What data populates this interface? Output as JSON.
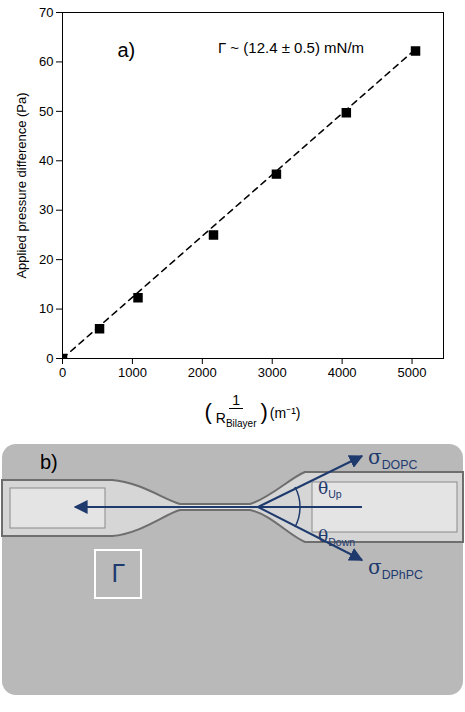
{
  "chart_data": {
    "type": "scatter",
    "panel_label": "a)",
    "annotation": "Γ ~ (12.4 ± 0.5) mN/m",
    "y_label": "Applied pressure difference (Pa)",
    "x_label": {
      "numerator": "1",
      "denominator": "R",
      "denominator_subscript": "Bilayer",
      "unit": "(m⁻¹)"
    },
    "x": [
      0,
      530,
      1080,
      2160,
      3060,
      4060,
      5050
    ],
    "values": [
      0,
      6.0,
      12.3,
      25.0,
      37.3,
      49.7,
      62.2
    ],
    "color": "#000000",
    "marker": "square",
    "fit": {
      "x": [
        0,
        5050
      ],
      "values": [
        0,
        62.6
      ],
      "color": "#000000",
      "line_style": "dashed"
    },
    "xlim": [
      0,
      5450
    ],
    "xticks": [
      0,
      1000,
      2000,
      3000,
      4000,
      5000
    ],
    "ylim": [
      0,
      70
    ],
    "yticks": [
      0,
      10,
      20,
      30,
      40,
      50,
      60,
      70
    ]
  },
  "diagram": {
    "panel_label": "b)",
    "tension_upper": {
      "symbol": "σ",
      "subscript": "DOPC"
    },
    "tension_lower": {
      "symbol": "σ",
      "subscript": "DPhPC"
    },
    "angle_upper": {
      "symbol": "θ",
      "subscript": "Up"
    },
    "angle_lower": {
      "symbol": "θ",
      "subscript": "Down"
    },
    "bilayer_tension": "Γ"
  }
}
